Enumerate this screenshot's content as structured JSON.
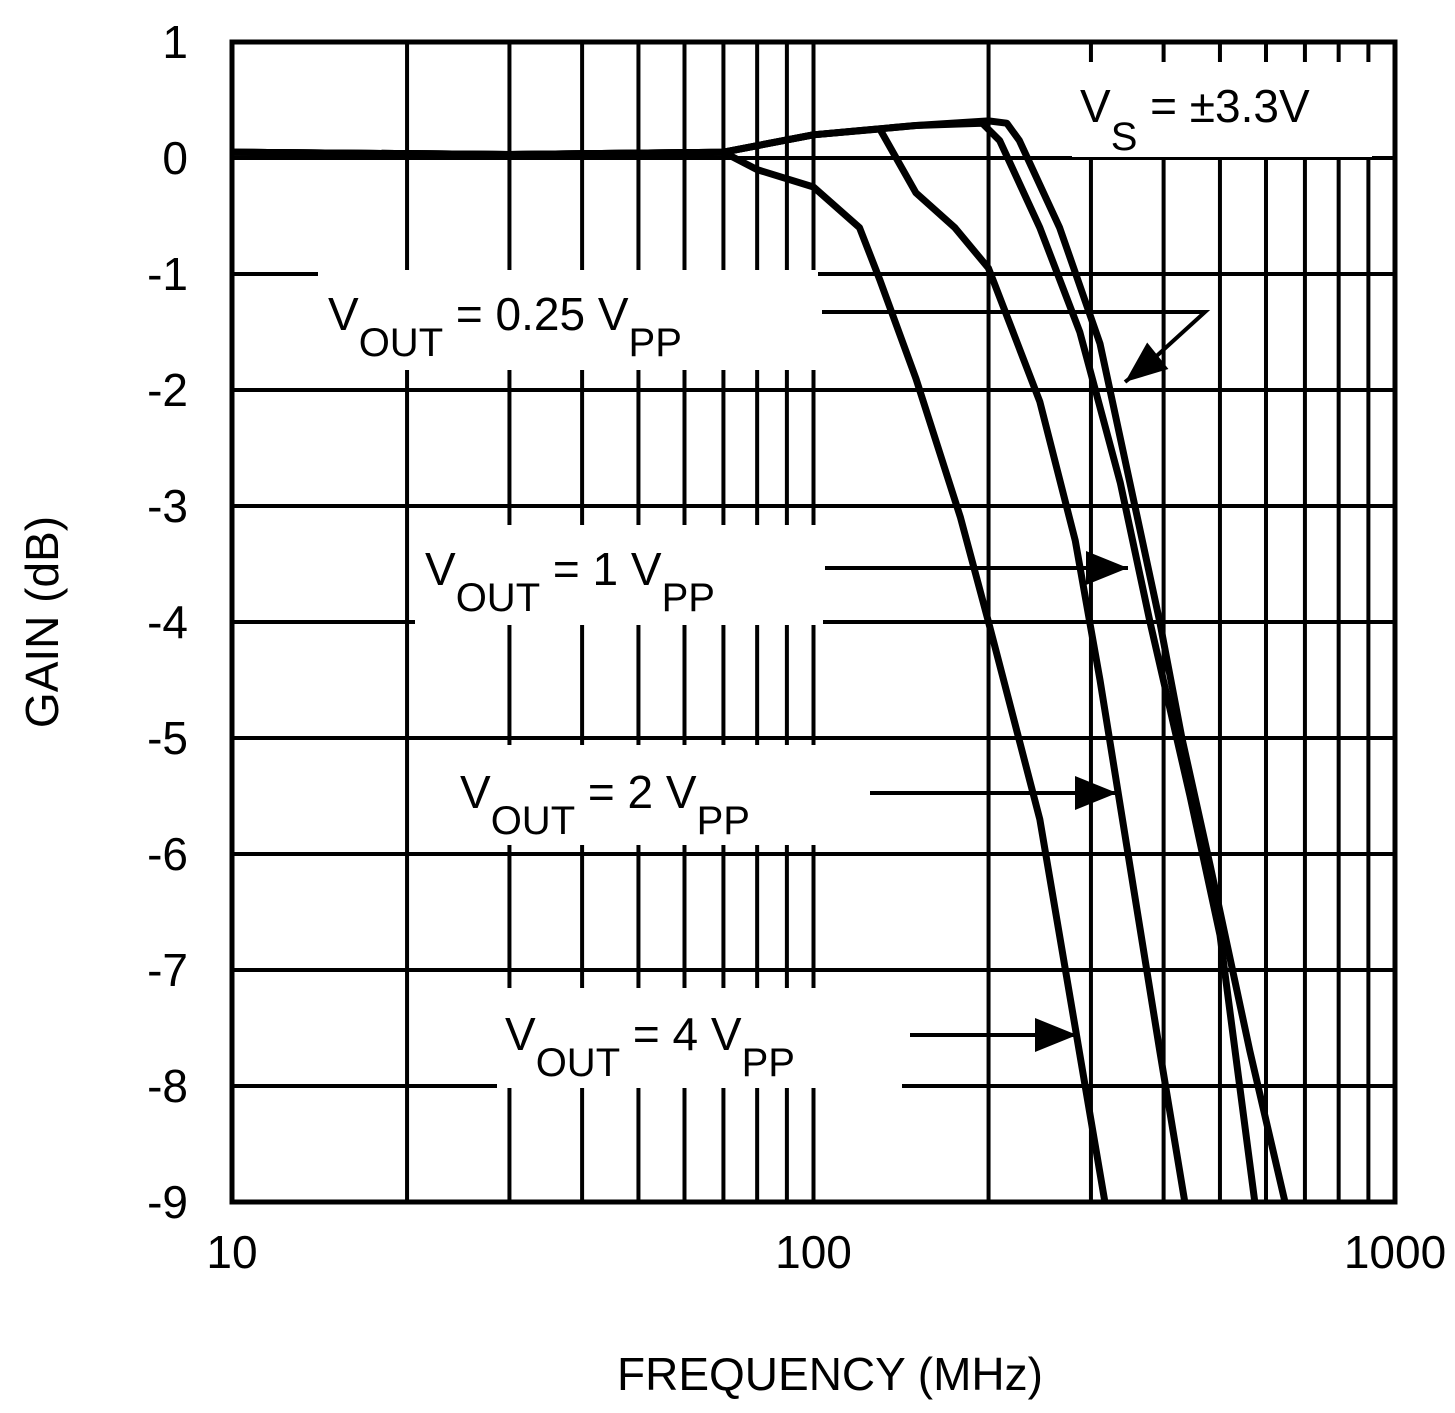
{
  "chart_data": {
    "type": "line",
    "xlabel": "FREQUENCY (MHz)",
    "ylabel": "GAIN (dB)",
    "x_scale": "log",
    "xlim": [
      10,
      1000
    ],
    "ylim": [
      -9,
      1
    ],
    "grid": true,
    "x_ticks": [
      "10",
      "100",
      "1000"
    ],
    "y_ticks": [
      "1",
      "0",
      "-1",
      "-2",
      "-3",
      "-4",
      "-5",
      "-6",
      "-7",
      "-8",
      "-9"
    ],
    "annotations": {
      "supply": {
        "main": "V",
        "sub": "S",
        "rest": " = ±3.3V"
      },
      "labels": [
        {
          "v": "V",
          "out": "OUT",
          "eq": " = 0.25 V",
          "pp": "PP"
        },
        {
          "v": "V",
          "out": "OUT",
          "eq": " = 1 V",
          "pp": "PP"
        },
        {
          "v": "V",
          "out": "OUT",
          "eq": " = 2 V",
          "pp": "PP"
        },
        {
          "v": "V",
          "out": "OUT",
          "eq": " = 4 V",
          "pp": "PP"
        }
      ]
    },
    "series": [
      {
        "name": "VOUT = 0.25 VPP",
        "points": [
          [
            10,
            0.05
          ],
          [
            30,
            0.03
          ],
          [
            70,
            0.05
          ],
          [
            100,
            0.2
          ],
          [
            150,
            0.28
          ],
          [
            200,
            0.32
          ],
          [
            215,
            0.3
          ],
          [
            226,
            0.15
          ],
          [
            265,
            -0.6
          ],
          [
            311,
            -1.6
          ],
          [
            350,
            -2.8
          ],
          [
            394,
            -4
          ],
          [
            430,
            -5
          ],
          [
            481,
            -6.1
          ],
          [
            563,
            -7.7
          ],
          [
            647,
            -9
          ]
        ]
      },
      {
        "name": "VOUT = 1 VPP",
        "points": [
          [
            10,
            0.05
          ],
          [
            30,
            0.03
          ],
          [
            70,
            0.05
          ],
          [
            100,
            0.2
          ],
          [
            150,
            0.28
          ],
          [
            195,
            0.3
          ],
          [
            209,
            0.15
          ],
          [
            245,
            -0.6
          ],
          [
            287,
            -1.5
          ],
          [
            337,
            -2.8
          ],
          [
            379,
            -4
          ],
          [
            444,
            -5.5
          ],
          [
            500,
            -6.7
          ],
          [
            574,
            -9
          ]
        ]
      },
      {
        "name": "VOUT = 2 VPP",
        "points": [
          [
            10,
            0.05
          ],
          [
            30,
            0.03
          ],
          [
            70,
            0.05
          ],
          [
            100,
            0.2
          ],
          [
            130,
            0.25
          ],
          [
            150,
            -0.3
          ],
          [
            175,
            -0.6
          ],
          [
            200,
            -0.95
          ],
          [
            245,
            -2.1
          ],
          [
            282,
            -3.3
          ],
          [
            311,
            -4.5
          ],
          [
            350,
            -6.1
          ],
          [
            394,
            -7.7
          ],
          [
            435,
            -9
          ]
        ]
      },
      {
        "name": "VOUT = 4 VPP",
        "points": [
          [
            10,
            0.05
          ],
          [
            30,
            0.03
          ],
          [
            70,
            0.05
          ],
          [
            80,
            -0.1
          ],
          [
            100,
            -0.25
          ],
          [
            120,
            -0.6
          ],
          [
            130,
            -1.05
          ],
          [
            150,
            -1.9
          ],
          [
            179,
            -3.1
          ],
          [
            200,
            -4
          ],
          [
            245,
            -5.7
          ],
          [
            282,
            -7.5
          ],
          [
            317,
            -9
          ]
        ]
      }
    ]
  }
}
